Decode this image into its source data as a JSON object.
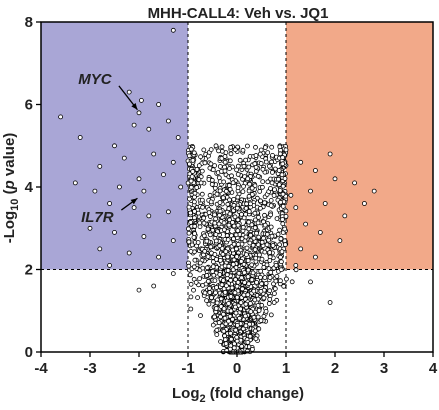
{
  "chart_data": {
    "type": "scatter",
    "title": "MHH-CALL4: Veh vs. JQ1",
    "xlabel": "Log",
    "xlabel_sub": "2",
    "xlabel_rest": " (fold change)",
    "ylabel_pre": "-Log",
    "ylabel_sub": "10",
    "ylabel_mid": " (",
    "ylabel_italic": "p",
    "ylabel_post": " value)",
    "xlim": [
      -4,
      4
    ],
    "ylim": [
      0,
      8
    ],
    "x_ticks": [
      "-4",
      "-3",
      "-2",
      "-1",
      "0",
      "1",
      "2",
      "3",
      "4"
    ],
    "y_ticks": [
      "0",
      "2",
      "4",
      "6",
      "8"
    ],
    "thresholds": {
      "x": [
        -1,
        1
      ],
      "y": 2
    },
    "region_colors": {
      "down": "#a9a6d6",
      "up": "#f2a989"
    },
    "point_color": "#000000",
    "annotations": [
      {
        "label": "MYC",
        "text_x": -2.9,
        "text_y": 6.5,
        "point_x": -1.95,
        "point_y": 5.8
      },
      {
        "label": "IL7R",
        "text_x": -2.85,
        "text_y": 3.15,
        "point_x": -1.95,
        "point_y": 3.8
      }
    ],
    "highlight_points": [
      {
        "x": -1.3,
        "y": 7.8
      },
      {
        "x": -3.6,
        "y": 5.7
      },
      {
        "x": -3.2,
        "y": 5.2
      },
      {
        "x": -2.2,
        "y": 6.3
      },
      {
        "x": -1.95,
        "y": 6.1
      },
      {
        "x": -1.6,
        "y": 6.0
      },
      {
        "x": -2.1,
        "y": 5.5
      },
      {
        "x": -1.8,
        "y": 5.4
      },
      {
        "x": -1.4,
        "y": 5.6
      },
      {
        "x": -2.5,
        "y": 5.0
      },
      {
        "x": -1.2,
        "y": 5.2
      },
      {
        "x": -2.8,
        "y": 4.5
      },
      {
        "x": -2.3,
        "y": 4.7
      },
      {
        "x": -1.7,
        "y": 4.8
      },
      {
        "x": -1.3,
        "y": 4.6
      },
      {
        "x": -3.3,
        "y": 4.1
      },
      {
        "x": -2.9,
        "y": 3.9
      },
      {
        "x": -2.4,
        "y": 4.0
      },
      {
        "x": -2.0,
        "y": 4.2
      },
      {
        "x": -1.5,
        "y": 4.3
      },
      {
        "x": -1.15,
        "y": 4.0
      },
      {
        "x": -2.6,
        "y": 3.6
      },
      {
        "x": -2.1,
        "y": 3.5
      },
      {
        "x": -1.8,
        "y": 3.3
      },
      {
        "x": -1.4,
        "y": 3.4
      },
      {
        "x": -3.0,
        "y": 3.0
      },
      {
        "x": -2.5,
        "y": 2.9
      },
      {
        "x": -1.9,
        "y": 2.8
      },
      {
        "x": -1.3,
        "y": 2.7
      },
      {
        "x": -2.8,
        "y": 2.5
      },
      {
        "x": -2.2,
        "y": 2.4
      },
      {
        "x": -1.6,
        "y": 2.3
      },
      {
        "x": -2.6,
        "y": 2.1
      },
      {
        "x": -1.9,
        "y": 3.9
      },
      {
        "x": -2.0,
        "y": 5.8
      },
      {
        "x": 1.3,
        "y": 4.6
      },
      {
        "x": 1.6,
        "y": 4.4
      },
      {
        "x": 2.0,
        "y": 4.2
      },
      {
        "x": 1.9,
        "y": 4.8
      },
      {
        "x": 2.4,
        "y": 4.1
      },
      {
        "x": 1.5,
        "y": 3.9
      },
      {
        "x": 1.2,
        "y": 3.5
      },
      {
        "x": 2.2,
        "y": 3.3
      },
      {
        "x": 1.8,
        "y": 3.6
      },
      {
        "x": 2.6,
        "y": 3.6
      },
      {
        "x": 1.4,
        "y": 3.1
      },
      {
        "x": 1.1,
        "y": 3.8
      },
      {
        "x": 1.7,
        "y": 2.9
      },
      {
        "x": 2.1,
        "y": 2.7
      },
      {
        "x": 1.3,
        "y": 2.5
      },
      {
        "x": 1.6,
        "y": 2.3
      },
      {
        "x": 1.2,
        "y": 2.1
      },
      {
        "x": 2.8,
        "y": 3.9
      },
      {
        "x": 1.0,
        "y": 4.9
      },
      {
        "x": 1.9,
        "y": 1.2
      },
      {
        "x": 1.5,
        "y": 1.7
      },
      {
        "x": -1.3,
        "y": 1.9
      },
      {
        "x": -1.7,
        "y": 1.6
      },
      {
        "x": -2.0,
        "y": 1.5
      }
    ],
    "cloud": {
      "count": 2600,
      "seed": 12345
    }
  }
}
